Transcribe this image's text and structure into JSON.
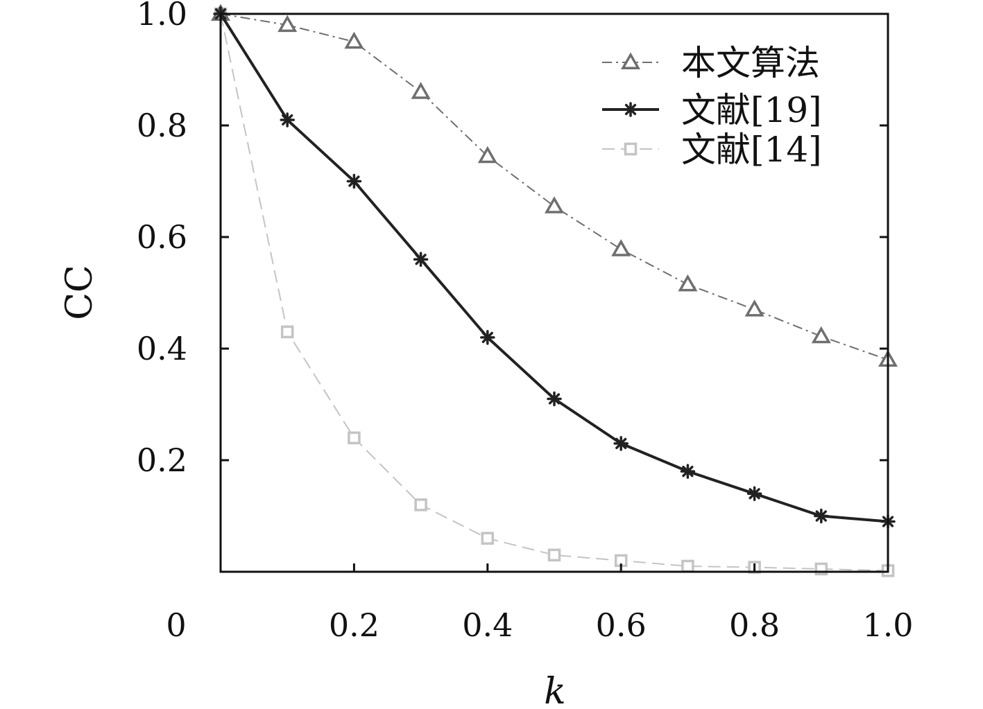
{
  "chart_data": {
    "type": "line",
    "xlabel": "k",
    "ylabel": "CC",
    "xlim": [
      0,
      1.0
    ],
    "ylim": [
      0,
      1.0
    ],
    "x": [
      0,
      0.1,
      0.2,
      0.3,
      0.4,
      0.5,
      0.6,
      0.7,
      0.8,
      0.9,
      1.0
    ],
    "x_tick_labels": [
      "0",
      "0.2",
      "0.4",
      "0.6",
      "0.8",
      "1.0"
    ],
    "x_ticks": [
      0,
      0.2,
      0.4,
      0.6,
      0.8,
      1.0
    ],
    "y_tick_labels": [
      "0.2",
      "0.4",
      "0.6",
      "0.8",
      "1.0"
    ],
    "y_ticks": [
      0.2,
      0.4,
      0.6,
      0.8,
      1.0
    ],
    "grid": false,
    "legend_position": "top-right",
    "series": [
      {
        "name": "本文算法",
        "marker": "triangle",
        "line_style": "dash-dot",
        "color": "#6e6e6e",
        "values": [
          1.0,
          0.98,
          0.95,
          0.86,
          0.745,
          0.655,
          0.578,
          0.515,
          0.47,
          0.422,
          0.38
        ]
      },
      {
        "name": "文献[19]",
        "marker": "asterisk",
        "line_style": "solid",
        "color": "#222222",
        "values": [
          1.0,
          0.81,
          0.7,
          0.56,
          0.42,
          0.31,
          0.23,
          0.18,
          0.14,
          0.1,
          0.09
        ]
      },
      {
        "name": "文献[14]",
        "marker": "square",
        "line_style": "dashed",
        "color": "#c4c4c4",
        "values": [
          1.0,
          0.43,
          0.24,
          0.12,
          0.06,
          0.03,
          0.02,
          0.01,
          0.008,
          0.005,
          0.002
        ]
      }
    ]
  }
}
